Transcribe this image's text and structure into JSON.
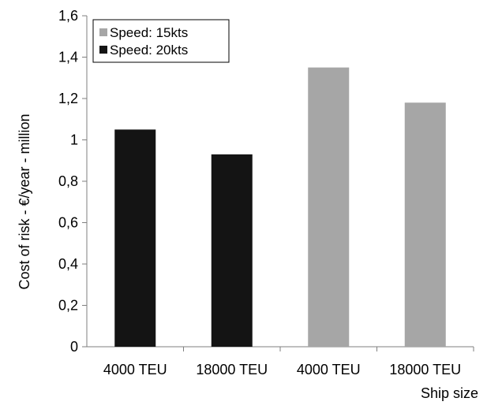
{
  "chart_data": {
    "type": "bar",
    "categories": [
      "4000 TEU",
      "18000 TEU",
      "4000 TEU",
      "18000 TEU"
    ],
    "series": [
      {
        "name": "Speed: 15kts",
        "color": "#a6a6a6",
        "values": [
          null,
          null,
          1.35,
          1.18
        ]
      },
      {
        "name": "Speed: 20kts",
        "color": "#141414",
        "values": [
          1.05,
          0.93,
          null,
          null
        ]
      }
    ],
    "title": "",
    "xlabel": "Ship size",
    "ylabel": "Cost of risk - €/year - million",
    "ylim": [
      0,
      1.6
    ],
    "yticks": [
      "0",
      "0,2",
      "0,4",
      "0,6",
      "0,8",
      "1",
      "1,2",
      "1,4",
      "1,6"
    ],
    "grid": false,
    "legend": "top-left"
  }
}
